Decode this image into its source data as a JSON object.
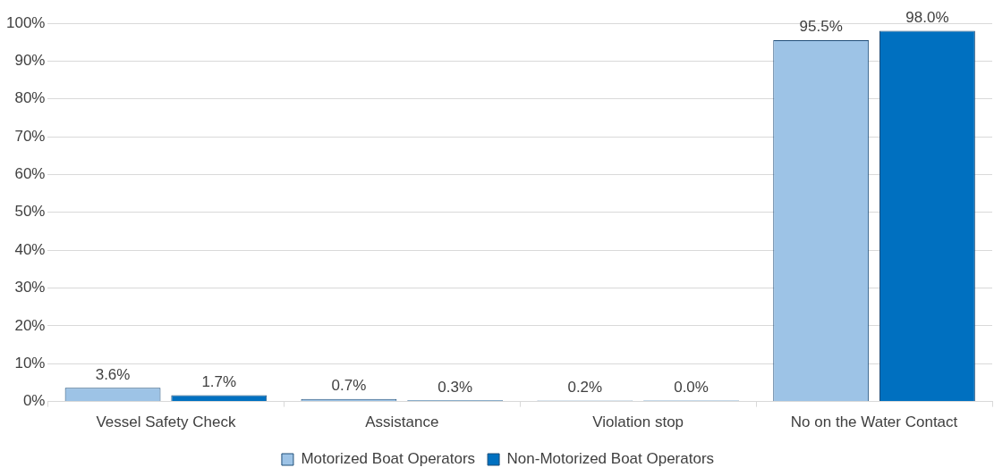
{
  "chart_data": {
    "type": "bar",
    "categories": [
      "Vessel Safety Check",
      "Assistance",
      "Violation stop",
      "No on the Water Contact"
    ],
    "series": [
      {
        "name": "Motorized Boat Operators",
        "color": "#9dc3e6",
        "values": [
          3.6,
          0.7,
          0.2,
          95.5
        ],
        "value_labels": [
          "3.6%",
          "0.7%",
          "0.2%",
          "95.5%"
        ]
      },
      {
        "name": "Non-Motorized Boat Operators",
        "color": "#0070c0",
        "values": [
          1.7,
          0.3,
          0.0,
          98.0
        ],
        "value_labels": [
          "1.7%",
          "0.3%",
          "0.0%",
          "98.0%"
        ]
      }
    ],
    "ylim": [
      0,
      100
    ],
    "yticks": [
      {
        "value": 0,
        "label": "0%"
      },
      {
        "value": 10,
        "label": "10%"
      },
      {
        "value": 20,
        "label": "20%"
      },
      {
        "value": 30,
        "label": "30%"
      },
      {
        "value": 40,
        "label": "40%"
      },
      {
        "value": 50,
        "label": "50%"
      },
      {
        "value": 60,
        "label": "60%"
      },
      {
        "value": 70,
        "label": "70%"
      },
      {
        "value": 80,
        "label": "80%"
      },
      {
        "value": 90,
        "label": "90%"
      },
      {
        "value": 100,
        "label": "100%"
      }
    ],
    "grid": "y",
    "legend": "bottom"
  }
}
